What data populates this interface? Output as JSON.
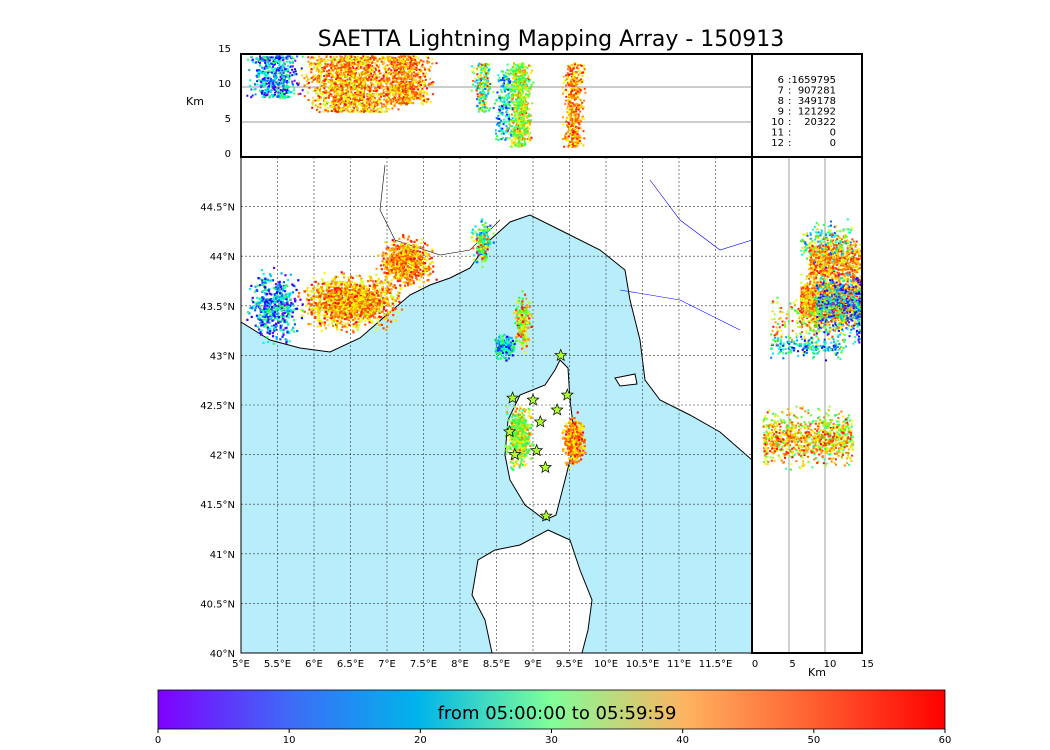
{
  "chart_data": {
    "type": "scatter",
    "title": "SAETTA Lightning Mapping Array - 150913",
    "map": {
      "lon_range": [
        5,
        12
      ],
      "lat_range": [
        40,
        45
      ],
      "lon_ticks": [
        "5°E",
        "5.5°E",
        "6°E",
        "6.5°E",
        "7°E",
        "7.5°E",
        "8°E",
        "8.5°E",
        "9°E",
        "9.5°E",
        "10°E",
        "10.5°E",
        "11°E",
        "11.5°E"
      ],
      "lat_ticks": [
        "40°N",
        "40.5°N",
        "41°N",
        "41.5°N",
        "42°N",
        "42.5°N",
        "43°N",
        "43.5°N",
        "44°N",
        "44.5°N"
      ]
    },
    "altitude_axis": {
      "label": "Km",
      "range": [
        0,
        15
      ],
      "ticks": [
        "0",
        "5",
        "10",
        "15"
      ]
    },
    "station_counts": [
      {
        "stations": "6",
        "count": "1659795",
        "highlight": false
      },
      {
        "stations": "7",
        "count": "907281",
        "highlight": true
      },
      {
        "stations": "8",
        "count": "349178",
        "highlight": false
      },
      {
        "stations": "9",
        "count": "121292",
        "highlight": false
      },
      {
        "stations": "10",
        "count": "20322",
        "highlight": false
      },
      {
        "stations": "11",
        "count": "0",
        "highlight": false
      },
      {
        "stations": "12",
        "count": "0",
        "highlight": false
      }
    ],
    "stations": [
      [
        9.38,
        43.0
      ],
      [
        8.72,
        42.57
      ],
      [
        9.0,
        42.55
      ],
      [
        9.47,
        42.6
      ],
      [
        9.33,
        42.45
      ],
      [
        9.1,
        42.33
      ],
      [
        8.68,
        42.23
      ],
      [
        9.05,
        42.04
      ],
      [
        8.75,
        42.0
      ],
      [
        9.17,
        41.87
      ],
      [
        9.18,
        41.38
      ]
    ],
    "source_clusters": [
      {
        "lon": 6.5,
        "lat": 43.55,
        "slon": 0.55,
        "slat": 0.22,
        "t": [
          42,
          60
        ],
        "alt": [
          6,
          14
        ],
        "n": 1500
      },
      {
        "lon": 7.25,
        "lat": 43.95,
        "slon": 0.3,
        "slat": 0.2,
        "t": [
          45,
          60
        ],
        "alt": [
          7,
          14
        ],
        "n": 700
      },
      {
        "lon": 5.45,
        "lat": 43.5,
        "slon": 0.3,
        "slat": 0.3,
        "t": [
          0,
          32
        ],
        "alt": [
          8,
          14
        ],
        "n": 500
      },
      {
        "lon": 8.3,
        "lat": 44.15,
        "slon": 0.12,
        "slat": 0.18,
        "t": [
          10,
          60
        ],
        "alt": [
          6,
          13
        ],
        "n": 200
      },
      {
        "lon": 8.85,
        "lat": 43.35,
        "slon": 0.1,
        "slat": 0.25,
        "t": [
          30,
          60
        ],
        "alt": [
          2,
          12
        ],
        "n": 200
      },
      {
        "lon": 8.6,
        "lat": 43.1,
        "slon": 0.12,
        "slat": 0.1,
        "t": [
          5,
          35
        ],
        "alt": [
          2,
          12
        ],
        "n": 180
      },
      {
        "lon": 8.8,
        "lat": 42.2,
        "slon": 0.15,
        "slat": 0.25,
        "t": [
          25,
          55
        ],
        "alt": [
          1,
          13
        ],
        "n": 500
      },
      {
        "lon": 9.55,
        "lat": 42.15,
        "slon": 0.12,
        "slat": 0.2,
        "t": [
          45,
          60
        ],
        "alt": [
          1,
          13
        ],
        "n": 450
      }
    ],
    "colorbar": {
      "label": "from 05:00:00 to 05:59:59",
      "range": [
        0,
        60
      ],
      "ticks": [
        "0",
        "10",
        "20",
        "30",
        "40",
        "50",
        "60"
      ]
    }
  }
}
